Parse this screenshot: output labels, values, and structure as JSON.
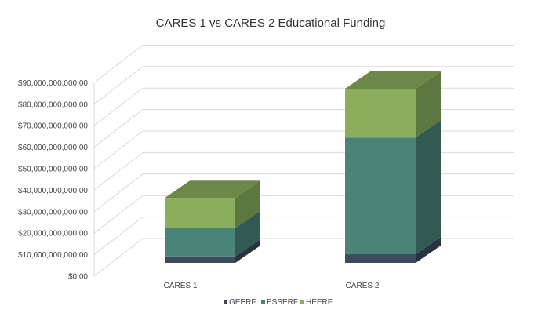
{
  "chart_data": {
    "type": "bar",
    "stacked": true,
    "three_d": true,
    "title": "CARES 1 vs CARES 2 Educational Funding",
    "categories": [
      "CARES 1",
      "CARES 2"
    ],
    "series": [
      {
        "name": "GEERF",
        "values": [
          3000000000,
          4000000000
        ],
        "color": "#3c4a5c"
      },
      {
        "name": "ESSERF",
        "values": [
          13200000000,
          54300000000
        ],
        "color": "#4a8479"
      },
      {
        "name": "HEERF",
        "values": [
          14000000000,
          22700000000
        ],
        "color": "#8aae5c"
      }
    ],
    "y_ticks": [
      "$0.00",
      "$10,000,000,000.00",
      "$20,000,000,000.00",
      "$30,000,000,000.00",
      "$40,000,000,000.00",
      "$50,000,000,000.00",
      "$60,000,000,000.00",
      "$70,000,000,000.00",
      "$80,000,000,000.00",
      "$90,000,000,000.00"
    ],
    "ylim": [
      0,
      90000000000
    ],
    "grid": true,
    "legend_position": "bottom"
  }
}
